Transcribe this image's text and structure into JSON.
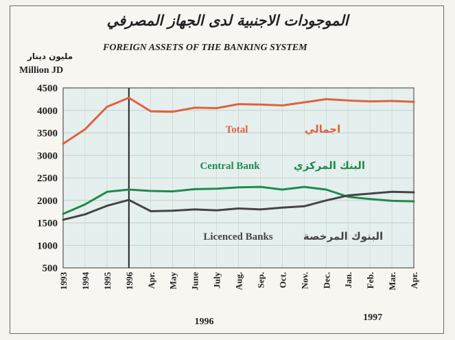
{
  "chart_data": {
    "type": "line",
    "title": "الموجودات الاجنبية لدى الجهاز المصرفي",
    "subtitle": "FOREIGN ASSETS OF THE BANKING SYSTEM",
    "ylabel_ar": "مليون دينار",
    "ylabel": "Million JD",
    "categories": [
      "1993",
      "1994",
      "1995",
      "1996",
      "Apr.",
      "May",
      "June",
      "July",
      "Aug.",
      "Sep.",
      "Oct.",
      "Nov.",
      "Dec.",
      "Jan.",
      "Feb.",
      "Mar.",
      "Apr."
    ],
    "year_labels": [
      "1996",
      "1997"
    ],
    "yticks": [
      500,
      1000,
      1500,
      2000,
      2500,
      3000,
      3500,
      4000,
      4500
    ],
    "ylim": [
      500,
      4500
    ],
    "grid": true,
    "series": [
      {
        "name": "Total",
        "name_ar": "اجمالي",
        "color": "#e2603a",
        "values": [
          3260,
          3580,
          4080,
          4280,
          3980,
          3970,
          4060,
          4050,
          4140,
          4130,
          4110,
          4180,
          4250,
          4220,
          4200,
          4210,
          4190
        ]
      },
      {
        "name": "Central Bank",
        "name_ar": "البنك المركزي",
        "color": "#1f8a4c",
        "values": [
          1700,
          1910,
          2190,
          2240,
          2210,
          2200,
          2250,
          2260,
          2290,
          2300,
          2240,
          2300,
          2240,
          2080,
          2030,
          1990,
          1980
        ]
      },
      {
        "name": "Licenced Banks",
        "name_ar": "البنوك المرخصة",
        "color": "#444444",
        "values": [
          1570,
          1690,
          1880,
          2010,
          1760,
          1770,
          1800,
          1780,
          1820,
          1800,
          1840,
          1870,
          2000,
          2110,
          2150,
          2190,
          2180
        ]
      }
    ]
  }
}
